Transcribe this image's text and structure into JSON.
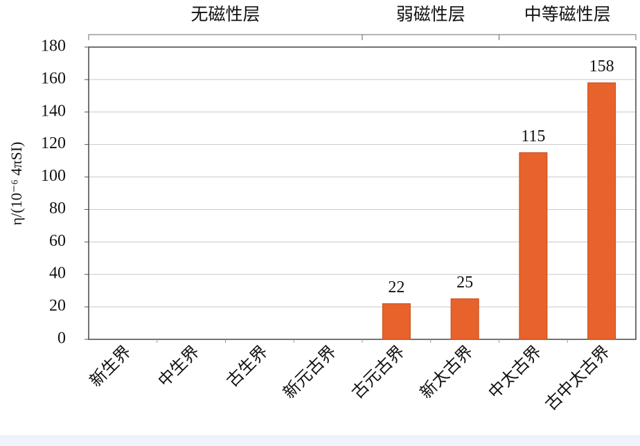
{
  "chart_data": {
    "type": "bar",
    "y_label": "η/(10⁻⁶ 4πSI)",
    "categories": [
      "新生界",
      "中生界",
      "古生界",
      "新元古界",
      "古元古界",
      "新太古界",
      "中太古界",
      "古中太古界"
    ],
    "values": [
      0,
      0,
      0,
      0,
      22,
      25,
      115,
      158
    ],
    "value_labels": [
      null,
      null,
      null,
      null,
      "22",
      "25",
      "115",
      "158"
    ],
    "color": "#e8622c",
    "ylim": [
      0,
      180
    ],
    "yticks": [
      0,
      20,
      40,
      60,
      80,
      100,
      120,
      140,
      160,
      180
    ],
    "grid": true,
    "groups": [
      {
        "label": "无磁性层",
        "start": 0,
        "end": 3
      },
      {
        "label": "弱磁性层",
        "start": 4,
        "end": 5
      },
      {
        "label": "中等磁性层",
        "start": 6,
        "end": 7
      }
    ]
  }
}
